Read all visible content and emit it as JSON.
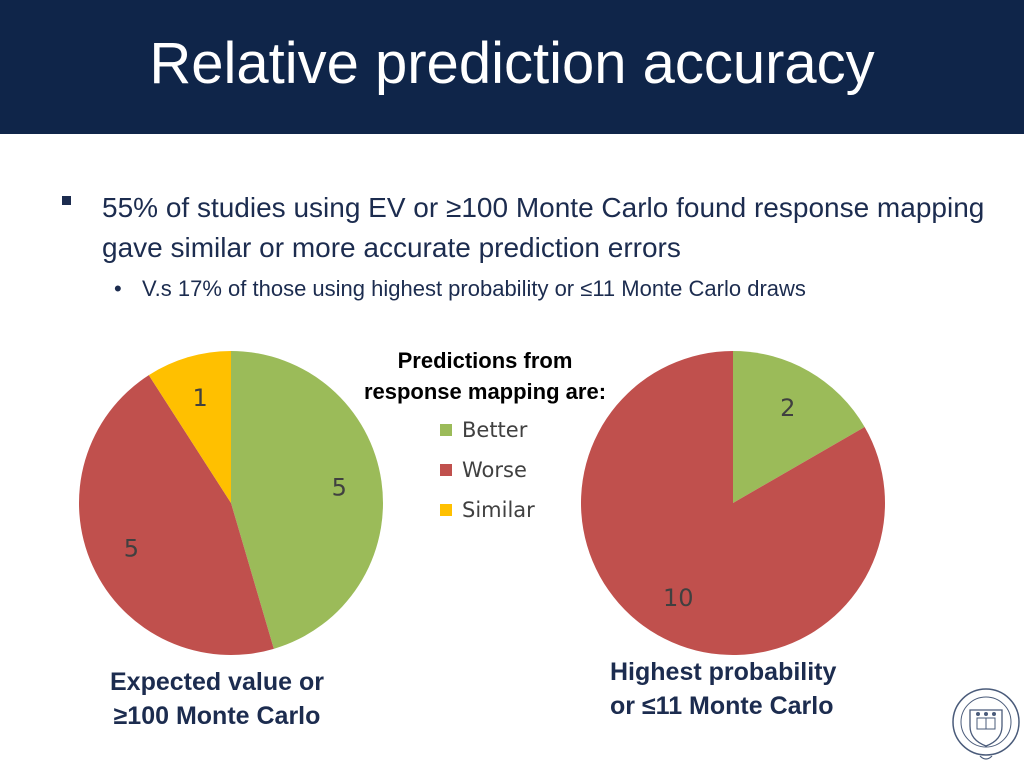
{
  "slide": {
    "title": "Relative prediction accuracy",
    "bullets": [
      {
        "text": "55% of studies using EV or ≥100 Monte Carlo found response mapping gave similar or more accurate prediction errors"
      },
      {
        "marker": "•",
        "text": "V.s 17% of those using highest probability or ≤11 Monte Carlo draws"
      }
    ],
    "legend_title_line1": "Predictions from",
    "legend_title_line2": "response mapping are:",
    "caption_left_line1": "Expected value or",
    "caption_left_line2": "≥100 Monte Carlo",
    "caption_right_line1": "Highest probability",
    "caption_right_line2": "or ≤11 Monte Carlo",
    "logo_icon": "university-of-oxford-crest-icon"
  },
  "colors": {
    "title_bar": "#0f2549",
    "better": "#9bbb59",
    "worse": "#c0504d",
    "similar": "#ffc000"
  },
  "chart_data": [
    {
      "type": "pie",
      "categories": [
        "Better",
        "Worse",
        "Similar"
      ],
      "values": [
        5,
        5,
        1
      ],
      "legend_position": "center"
    },
    {
      "type": "pie",
      "categories": [
        "Better",
        "Worse"
      ],
      "values": [
        2,
        10
      ]
    }
  ]
}
